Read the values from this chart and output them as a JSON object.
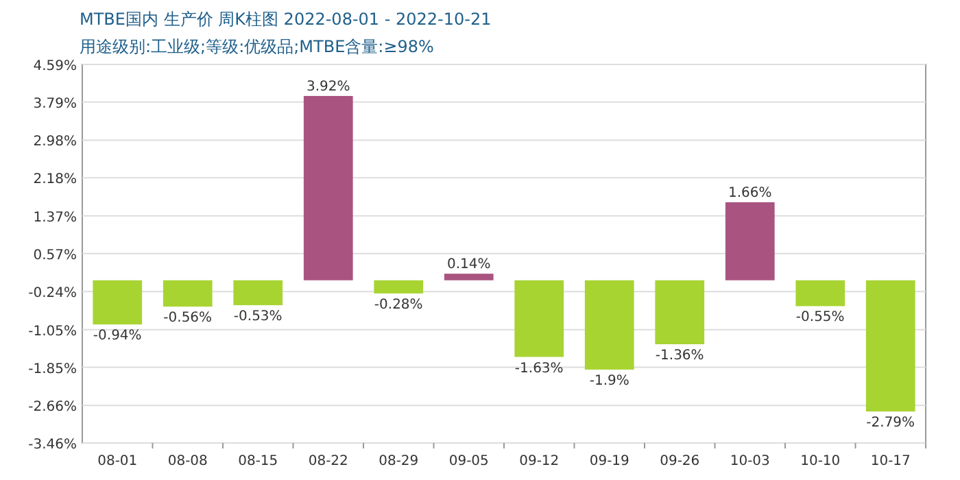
{
  "chart_data": {
    "type": "bar",
    "title": "MTBE国内 生产价 周K柱图 2022-08-01 - 2022-10-21",
    "subtitle": "用途级别:工业级;等级:优级品;MTBE含量:≥98%",
    "categories": [
      "08-01",
      "08-08",
      "08-15",
      "08-22",
      "08-29",
      "09-05",
      "09-12",
      "09-19",
      "09-26",
      "10-03",
      "10-10",
      "10-17"
    ],
    "values": [
      -0.94,
      -0.56,
      -0.53,
      3.92,
      -0.28,
      0.14,
      -1.63,
      -1.9,
      -1.36,
      1.66,
      -0.55,
      -2.79
    ],
    "value_labels": [
      "-0.94%",
      "-0.56%",
      "-0.53%",
      "3.92%",
      "-0.28%",
      "0.14%",
      "-1.63%",
      "-1.9%",
      "-1.36%",
      "1.66%",
      "-0.55%",
      "-2.79%"
    ],
    "colors": [
      "#a8d432",
      "#a8d432",
      "#a8d432",
      "#a95480",
      "#a8d432",
      "#a95480",
      "#a8d432",
      "#a8d432",
      "#a8d432",
      "#a95480",
      "#a8d432",
      "#a8d432"
    ],
    "ylim": [
      -3.46,
      4.59
    ],
    "yticks": [
      {
        "value": 4.59,
        "label": "4.59%"
      },
      {
        "value": 3.79,
        "label": "3.79%"
      },
      {
        "value": 2.98,
        "label": "2.98%"
      },
      {
        "value": 2.18,
        "label": "2.18%"
      },
      {
        "value": 1.37,
        "label": "1.37%"
      },
      {
        "value": 0.57,
        "label": "0.57%"
      },
      {
        "value": -0.24,
        "label": "-0.24%"
      },
      {
        "value": -1.05,
        "label": "-1.05%"
      },
      {
        "value": -1.85,
        "label": "-1.85%"
      },
      {
        "value": -2.66,
        "label": "-2.66%"
      },
      {
        "value": -3.46,
        "label": "-3.46%"
      }
    ],
    "grid": "y"
  }
}
